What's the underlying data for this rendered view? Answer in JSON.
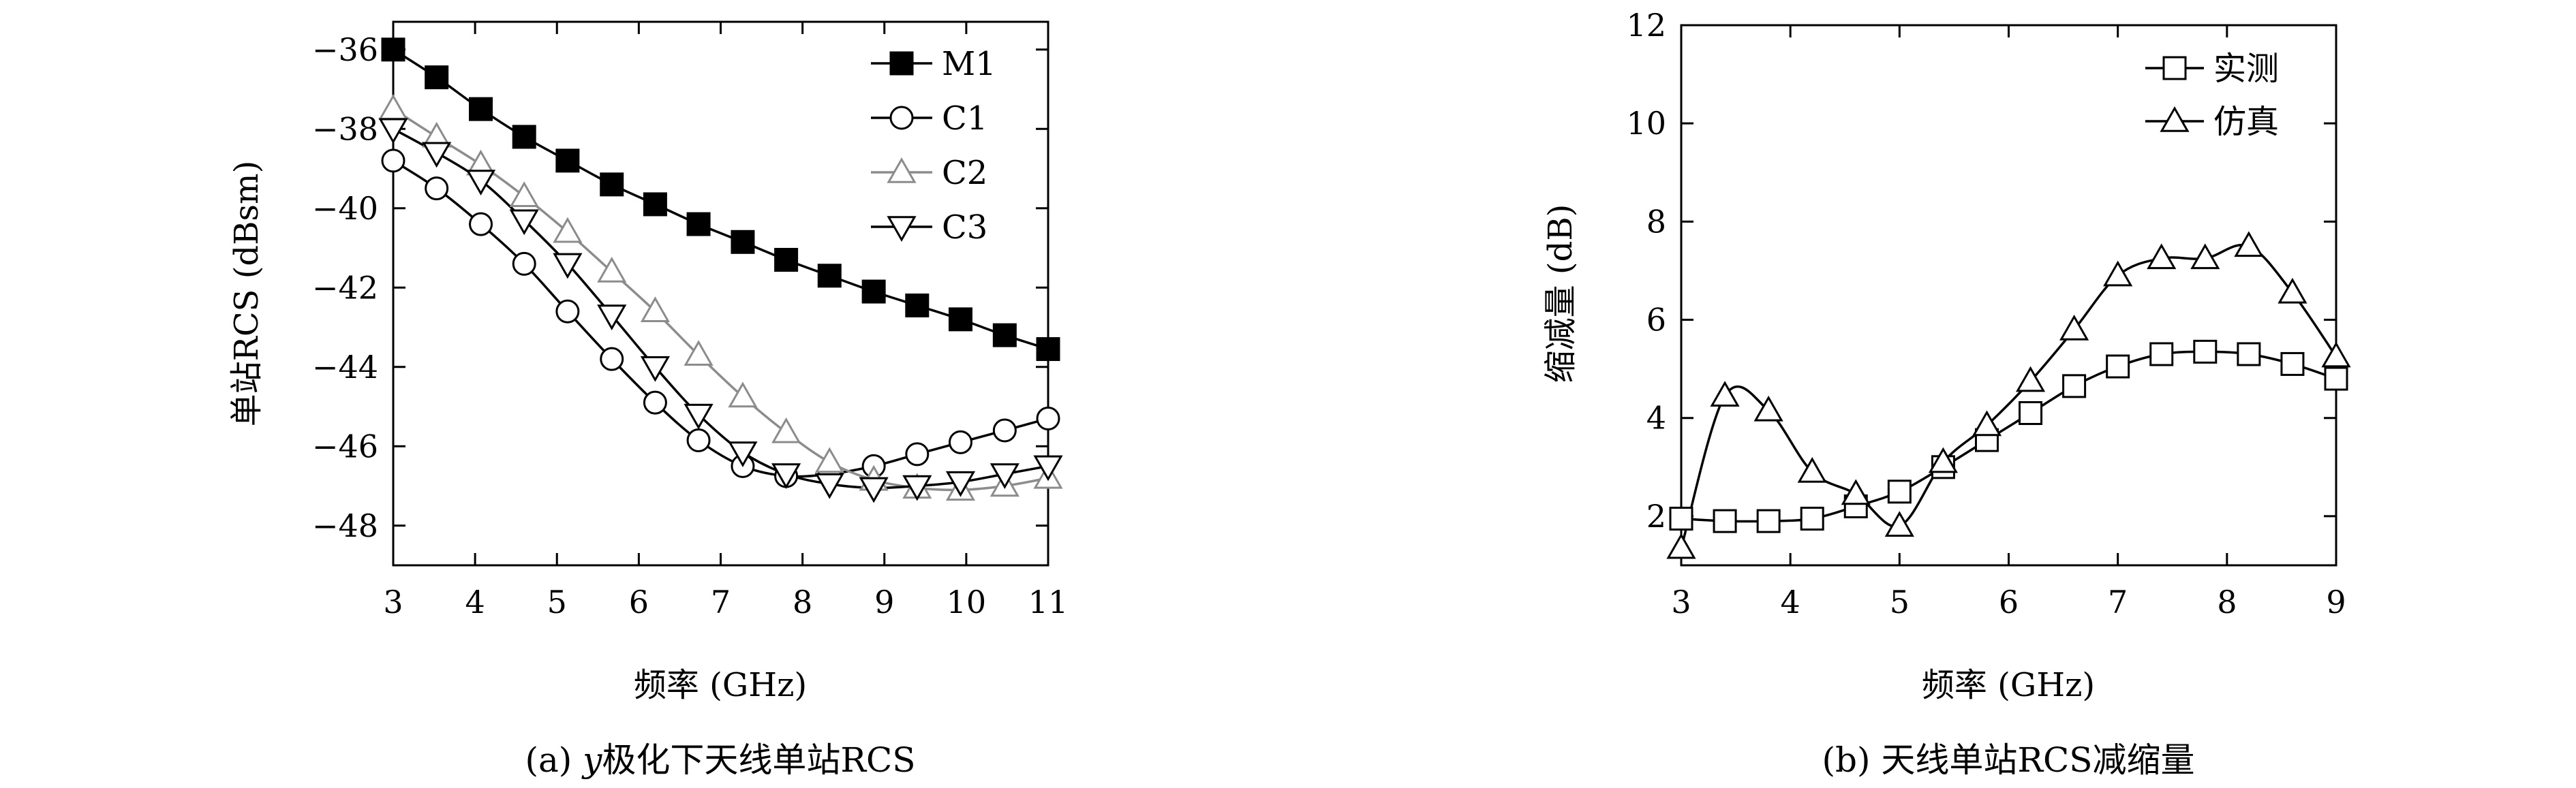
{
  "chart_data": [
    {
      "type": "line",
      "caption_prefix": "(a) ",
      "caption_italic": "y",
      "caption_rest": "极化下天线单站RCS",
      "xlabel": "频率 (GHz)",
      "ylabel": "单站RCS (dBsm)",
      "xlim": [
        3,
        11
      ],
      "ylim": [
        -49,
        -35.3
      ],
      "xticks": [
        3,
        4,
        5,
        6,
        7,
        8,
        9,
        10,
        11
      ],
      "yticks": [
        -48,
        -46,
        -44,
        -42,
        -40,
        -38,
        -36
      ],
      "ytick_labels": [
        "−48",
        "−46",
        "−44",
        "−42",
        "−40",
        "−38",
        "−36"
      ],
      "legend_position": "top-right",
      "series": [
        {
          "name": "M1",
          "marker": "filled-square",
          "color": "#000000",
          "x": [
            3.0,
            3.53,
            4.07,
            4.6,
            5.13,
            5.67,
            6.2,
            6.73,
            7.27,
            7.8,
            8.33,
            8.87,
            9.4,
            9.93,
            10.47,
            11.0
          ],
          "y": [
            -36.0,
            -36.7,
            -37.5,
            -38.2,
            -38.8,
            -39.4,
            -39.9,
            -40.4,
            -40.85,
            -41.3,
            -41.7,
            -42.1,
            -42.45,
            -42.8,
            -43.2,
            -43.55
          ]
        },
        {
          "name": "C1",
          "marker": "open-circle",
          "color": "#000000",
          "x": [
            3.0,
            3.53,
            4.07,
            4.6,
            5.13,
            5.67,
            6.2,
            6.73,
            7.27,
            7.8,
            8.33,
            8.87,
            9.4,
            9.93,
            10.47,
            11.0
          ],
          "y": [
            -38.8,
            -39.5,
            -40.4,
            -41.4,
            -42.6,
            -43.8,
            -44.9,
            -45.85,
            -46.5,
            -46.75,
            -46.7,
            -46.5,
            -46.2,
            -45.9,
            -45.6,
            -45.3
          ]
        },
        {
          "name": "C2",
          "marker": "open-triangle-up",
          "color": "#8c8c8c",
          "x": [
            3.0,
            3.53,
            4.07,
            4.6,
            5.13,
            5.67,
            6.2,
            6.73,
            7.27,
            7.8,
            8.33,
            8.87,
            9.4,
            9.93,
            10.47,
            11.0
          ],
          "y": [
            -37.5,
            -38.2,
            -38.9,
            -39.7,
            -40.6,
            -41.6,
            -42.6,
            -43.7,
            -44.75,
            -45.65,
            -46.4,
            -46.85,
            -47.05,
            -47.1,
            -47.0,
            -46.8
          ]
        },
        {
          "name": "C3",
          "marker": "open-triangle-down",
          "color": "#000000",
          "x": [
            3.0,
            3.53,
            4.07,
            4.6,
            5.13,
            5.67,
            6.2,
            6.73,
            7.27,
            7.8,
            8.33,
            8.87,
            9.4,
            9.93,
            10.47,
            11.0
          ],
          "y": [
            -38.0,
            -38.6,
            -39.3,
            -40.3,
            -41.4,
            -42.7,
            -44.0,
            -45.2,
            -46.15,
            -46.7,
            -46.95,
            -47.05,
            -47.0,
            -46.9,
            -46.7,
            -46.5
          ]
        }
      ]
    },
    {
      "type": "line",
      "caption_prefix": "(b) ",
      "caption_italic": "",
      "caption_rest": "天线单站RCS减缩量",
      "xlabel": "频率 (GHz)",
      "ylabel": "缩减量 (dB)",
      "xlim": [
        3,
        9
      ],
      "ylim": [
        1,
        12
      ],
      "xticks": [
        3,
        4,
        5,
        6,
        7,
        8,
        9
      ],
      "yticks": [
        2,
        4,
        6,
        8,
        10,
        12
      ],
      "ytick_labels": [
        "2",
        "4",
        "6",
        "8",
        "10",
        "12"
      ],
      "legend_position": "top-right",
      "series": [
        {
          "name": "实测",
          "marker": "open-square",
          "color": "#000000",
          "x": [
            3.0,
            3.4,
            3.8,
            4.2,
            4.6,
            5.0,
            5.4,
            5.8,
            6.2,
            6.6,
            7.0,
            7.4,
            7.8,
            8.2,
            8.6,
            9.0
          ],
          "y": [
            1.95,
            1.9,
            1.9,
            1.95,
            2.2,
            2.5,
            3.0,
            3.55,
            4.1,
            4.65,
            5.05,
            5.3,
            5.35,
            5.3,
            5.1,
            4.8
          ]
        },
        {
          "name": "仿真",
          "marker": "open-triangle-up",
          "color": "#000000",
          "x": [
            3.0,
            3.4,
            3.8,
            4.2,
            4.6,
            5.0,
            5.4,
            5.8,
            6.2,
            6.6,
            7.0,
            7.4,
            7.8,
            8.2,
            8.6,
            9.0
          ],
          "y": [
            1.35,
            4.45,
            4.15,
            2.9,
            2.45,
            1.8,
            3.1,
            3.85,
            4.75,
            5.8,
            6.9,
            7.25,
            7.25,
            7.5,
            6.55,
            5.25
          ]
        }
      ]
    }
  ]
}
